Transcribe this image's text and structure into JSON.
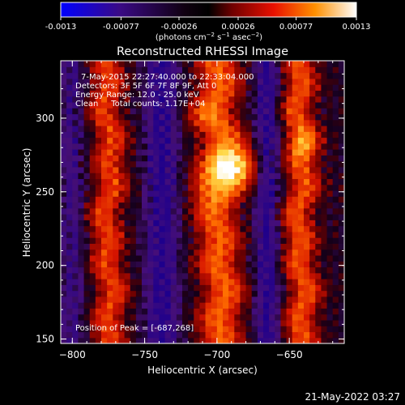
{
  "colorbar": {
    "ticks": [
      "-0.0013",
      "-0.00077",
      "-0.00026",
      "0.00026",
      "0.00077",
      "0.0013"
    ],
    "tick_values": [
      -0.0013,
      -0.00077,
      -0.00026,
      0.00026,
      0.00077,
      0.0013
    ],
    "range": [
      -0.0013,
      0.0013
    ],
    "units_main": "(photons cm",
    "units_exp1": "−2",
    "units_mid": " s",
    "units_exp2": "−1",
    "units_end": " asec",
    "units_exp3": "−2",
    "units_close": ")"
  },
  "chart_data": {
    "type": "heatmap",
    "title": "Reconstructed RHESSI Image",
    "xlabel": "Heliocentric X (arcsec)",
    "ylabel": "Heliocentric Y (arcsec)",
    "xlim": [
      -808,
      -612
    ],
    "ylim": [
      147,
      339
    ],
    "x_ticks": [
      -800,
      -750,
      -700,
      -650
    ],
    "x_tick_labels": [
      "−800",
      "−750",
      "−700",
      "−650"
    ],
    "y_ticks": [
      150,
      200,
      250,
      300
    ],
    "y_tick_labels": [
      "150",
      "200",
      "250",
      "300"
    ],
    "colormap": [
      "#0000ff",
      "#3a0080",
      "#000000",
      "#8a0000",
      "#ff2000",
      "#ff9a00",
      "#ffffff"
    ],
    "annotations": [
      "7-May-2015 22:27:40.000 to 22:33:04.000",
      "Detectors: 3F 5F 6F 7F 8F 9F, Att 0",
      "Energy Range: 12.0 - 25.0 keV",
      "Clean     Total counts: 1.17E+04"
    ],
    "peak_label": "Position of Peak = [-687,268]",
    "peak": [
      -687,
      268
    ],
    "vmin": -0.0013,
    "vmax": 0.0013
  },
  "footer": {
    "timestamp": "21-May-2022 03:27"
  }
}
